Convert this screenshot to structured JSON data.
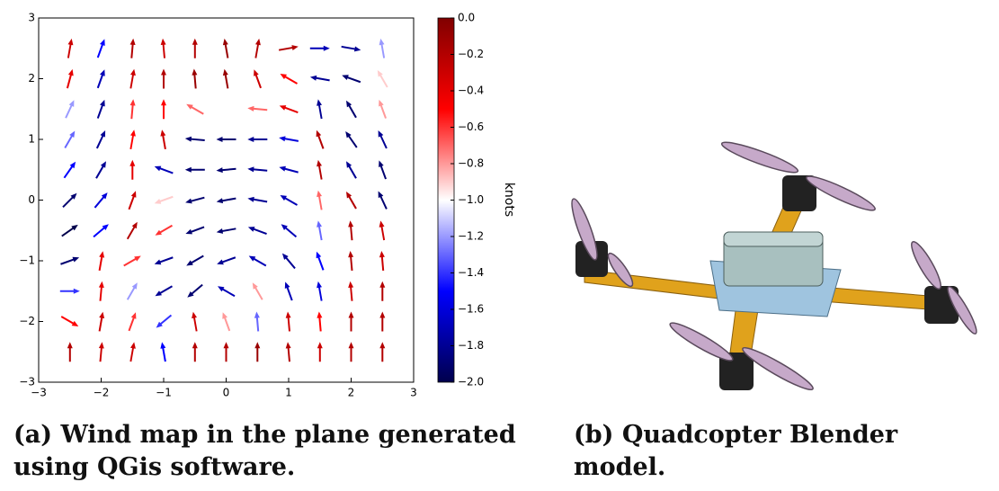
{
  "chart_data": {
    "type": "quiver",
    "xlim": [
      -3,
      3
    ],
    "ylim": [
      -3,
      3
    ],
    "xticks": [
      {
        "value": -3,
        "label": "−3"
      },
      {
        "value": -2,
        "label": "−2"
      },
      {
        "value": -1,
        "label": "−1"
      },
      0,
      1,
      2,
      3
    ],
    "yticks": [
      {
        "value": -3,
        "label": "−3"
      },
      {
        "value": -2,
        "label": "−2"
      },
      {
        "value": -1,
        "label": "−1"
      },
      0,
      1,
      2,
      3
    ],
    "x": [
      -2.5,
      -2,
      -1.5,
      -1,
      -0.5,
      0,
      0.5,
      1,
      1.5,
      2,
      2.5
    ],
    "y": [
      2.5,
      2,
      1.5,
      1,
      0.5,
      0,
      -0.5,
      -1,
      -1.5,
      -2,
      -2.5
    ],
    "angles": [
      [
        80,
        70,
        85,
        95,
        90,
        100,
        80,
        10,
        0,
        -10,
        100
      ],
      [
        75,
        70,
        80,
        90,
        95,
        100,
        110,
        150,
        170,
        160,
        120
      ],
      [
        65,
        70,
        85,
        90,
        150,
        170,
        175,
        160,
        100,
        120,
        110
      ],
      [
        60,
        65,
        80,
        100,
        175,
        180,
        180,
        170,
        110,
        125,
        115
      ],
      [
        55,
        60,
        90,
        160,
        180,
        185,
        175,
        165,
        100,
        120,
        110
      ],
      [
        45,
        50,
        70,
        200,
        195,
        190,
        170,
        150,
        100,
        120,
        115
      ],
      [
        35,
        40,
        60,
        210,
        200,
        190,
        160,
        140,
        100,
        95,
        100
      ],
      [
        20,
        80,
        30,
        200,
        210,
        200,
        150,
        130,
        110,
        95,
        95
      ],
      [
        0,
        85,
        60,
        210,
        220,
        150,
        120,
        110,
        100,
        95,
        90
      ],
      [
        330,
        80,
        70,
        220,
        100,
        110,
        95,
        95,
        95,
        90,
        90
      ],
      [
        90,
        85,
        80,
        100,
        90,
        90,
        90,
        95,
        90,
        90,
        90
      ]
    ],
    "values": [
      [
        -0.3,
        -1.5,
        -0.2,
        -0.3,
        -0.2,
        -0.1,
        -0.2,
        -0.2,
        -1.7,
        -1.8,
        -1.2
      ],
      [
        -0.4,
        -1.7,
        -0.3,
        -0.2,
        -0.1,
        -0.1,
        -0.3,
        -0.5,
        -1.8,
        -1.9,
        -0.9
      ],
      [
        -1.2,
        -1.8,
        -0.6,
        -0.5,
        -0.7,
        -1.0,
        -0.7,
        -0.4,
        -1.8,
        -1.9,
        -0.8
      ],
      [
        -1.3,
        -1.8,
        -0.5,
        -0.3,
        -1.9,
        -1.9,
        -1.8,
        -1.6,
        -0.2,
        -1.9,
        -1.8
      ],
      [
        -1.5,
        -1.8,
        -0.4,
        -1.7,
        -1.9,
        -1.9,
        -1.8,
        -1.7,
        -0.2,
        -1.8,
        -1.9
      ],
      [
        -1.9,
        -1.6,
        -0.3,
        -0.9,
        -1.9,
        -1.9,
        -1.8,
        -1.7,
        -0.7,
        -0.2,
        -1.9
      ],
      [
        -2.0,
        -1.5,
        -0.2,
        -0.6,
        -1.9,
        -1.9,
        -1.8,
        -1.7,
        -1.3,
        -0.2,
        -0.3
      ],
      [
        -1.9,
        -0.4,
        -0.6,
        -1.8,
        -1.9,
        -1.8,
        -1.7,
        -1.8,
        -1.5,
        -0.2,
        -0.3
      ],
      [
        -1.4,
        -0.4,
        -1.2,
        -1.8,
        -1.9,
        -1.7,
        -0.8,
        -1.7,
        -1.6,
        -0.3,
        -0.2
      ],
      [
        -0.5,
        -0.3,
        -0.6,
        -1.4,
        -0.3,
        -0.8,
        -1.3,
        -0.3,
        -0.5,
        -0.2,
        -0.2
      ],
      [
        -0.2,
        -0.3,
        -0.3,
        -1.5,
        -0.2,
        -0.2,
        -0.1,
        -0.2,
        -0.3,
        -0.2,
        -0.2
      ]
    ],
    "colorbar_lim": [
      -2,
      0
    ],
    "colorbar_ticks": [
      {
        "value": 0,
        "label": "0.0"
      },
      {
        "value": -0.2,
        "label": "−0.2"
      },
      {
        "value": -0.4,
        "label": "−0.4"
      },
      {
        "value": -0.6,
        "label": "−0.6"
      },
      {
        "value": -0.8,
        "label": "−0.8"
      },
      {
        "value": -1,
        "label": "−1.0"
      },
      {
        "value": -1.2,
        "label": "−1.2"
      },
      {
        "value": -1.4,
        "label": "−1.4"
      },
      {
        "value": -1.6,
        "label": "−1.6"
      },
      {
        "value": -1.8,
        "label": "−1.8"
      },
      {
        "value": -2,
        "label": "−2.0"
      }
    ],
    "colorbar_label": "knots"
  },
  "captions": [
    "(a) Wind map in the plane generated using QGis software.",
    "(b) Quadcopter Blender model."
  ]
}
